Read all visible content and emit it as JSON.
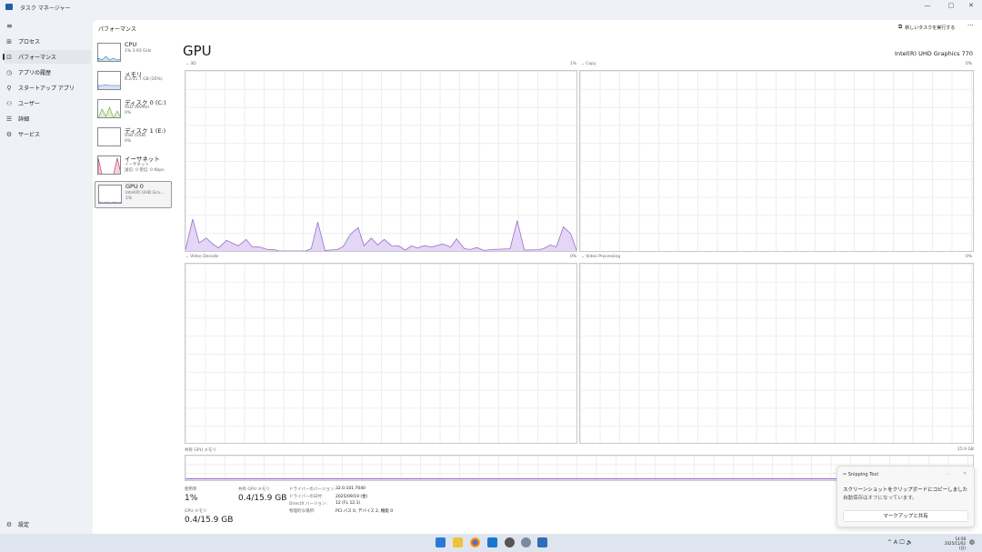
{
  "window": {
    "title": "タスク マネージャー",
    "min": "—",
    "max": "▢",
    "close": "✕"
  },
  "nav": {
    "menu_icon": "≡",
    "items": [
      {
        "label": "プロセス",
        "icon": "process-icon",
        "glyph": "⊞"
      },
      {
        "label": "パフォーマンス",
        "icon": "performance-icon",
        "glyph": "⊡",
        "active": true
      },
      {
        "label": "アプリの履歴",
        "icon": "history-icon",
        "glyph": "◷"
      },
      {
        "label": "スタートアップ アプリ",
        "icon": "startup-icon",
        "glyph": "⚲"
      },
      {
        "label": "ユーザー",
        "icon": "users-icon",
        "glyph": "⚇"
      },
      {
        "label": "詳細",
        "icon": "details-icon",
        "glyph": "☰"
      },
      {
        "label": "サービス",
        "icon": "services-icon",
        "glyph": "⚙"
      }
    ],
    "settings": "設定"
  },
  "header": {
    "title": "パフォーマンス",
    "run_task": "新しいタスクを実行する",
    "more": "···"
  },
  "devices": [
    {
      "name": "CPU",
      "line1": "1% 3.93 GHz",
      "line2": "",
      "color": "#1f7fc2"
    },
    {
      "name": "メモリ",
      "line1": "8.2/31.7 GB (26%)",
      "line2": "",
      "color": "#3a6fc4"
    },
    {
      "name": "ディスク 0 (C:)",
      "line1": "SSD (NVMe)",
      "line2": "0%",
      "color": "#6aa62b"
    },
    {
      "name": "ディスク 1 (E:)",
      "line1": "USB (USB)",
      "line2": "0%",
      "color": "#6aa62b"
    },
    {
      "name": "イーサネット",
      "line1": "イーサネット",
      "line2": "送信: 0 受信: 0 Kbps",
      "color": "#c2185b"
    },
    {
      "name": "GPU 0",
      "line1": "Intel(R) UHD Gra...",
      "line2": "1%",
      "color": "#8a4fc6",
      "selected": true
    }
  ],
  "gpu": {
    "title": "GPU",
    "adapter": "Intel(R) UHD Graphics 770",
    "engines": [
      {
        "label": "3D",
        "max": "1%"
      },
      {
        "label": "Copy",
        "max": "0%"
      },
      {
        "label": "Video Decode",
        "max": "0%"
      },
      {
        "label": "Video Processing",
        "max": "0%"
      }
    ],
    "shared_mem_label": "共有 GPU メモリ",
    "shared_mem_max": "15.9 GB",
    "stats": {
      "util_label": "使用率",
      "util": "1%",
      "shared_label": "共有 GPU メモリ",
      "shared": "0.4/15.9 GB",
      "gpumem_label": "GPU メモリ",
      "gpumem": "0.4/15.9 GB"
    },
    "driver": [
      {
        "k": "ドライバーのバージョン:",
        "v": "32.0.101.7040"
      },
      {
        "k": "ドライバーの日付:",
        "v": "2025/09/19 (金)"
      },
      {
        "k": "DirectX バージョン:",
        "v": "12 (FL 12.1)"
      },
      {
        "k": "物理的な場所:",
        "v": "PCI バス 0, デバイス 2, 機能 0"
      }
    ]
  },
  "chart_data": {
    "type": "area",
    "series_color": "#9a6fc8",
    "fill": "#e4d6f6",
    "ylim": [
      0,
      1
    ],
    "xlim": [
      0,
      60
    ],
    "x": [
      0,
      1.1,
      2.1,
      3.2,
      4.2,
      5.1,
      6.3,
      8.1,
      9.3,
      10.2,
      11.4,
      12.6,
      13.5,
      14.4,
      18.4,
      19.3,
      20.3,
      21.4,
      23.3,
      24.2,
      25.3,
      26.5,
      27.4,
      28.5,
      29.5,
      30.5,
      31.6,
      32.7,
      33.7,
      34.7,
      35.6,
      36.7,
      37.7,
      39.5,
      40.7,
      41.6,
      42.8,
      43.7,
      44.7,
      45.8,
      47,
      49.8,
      50.9,
      52,
      54,
      54.9,
      56,
      56.9,
      58,
      59.1,
      60
    ],
    "y": [
      0.008,
      0.177,
      0.045,
      0.072,
      0.039,
      0.017,
      0.059,
      0.029,
      0.064,
      0.025,
      0.022,
      0.008,
      0.008,
      0,
      0,
      0.012,
      0.16,
      0.003,
      0.008,
      0.025,
      0.093,
      0.13,
      0.029,
      0.072,
      0.034,
      0.064,
      0.03,
      0.029,
      0.005,
      0.029,
      0.017,
      0.03,
      0.022,
      0.039,
      0.022,
      0.067,
      0.013,
      0.008,
      0.019,
      0.003,
      0.008,
      0.012,
      0.168,
      0.005,
      0.007,
      0.012,
      0.034,
      0.022,
      0.135,
      0.096,
      0.005
    ]
  },
  "toast": {
    "app": "Snipping Tool",
    "line1": "スクリーンショットをクリップボードにコピーしました",
    "line2": "自動保存はオフになっています。",
    "button": "マークアップと共有"
  },
  "taskbar": {
    "time": "14:58",
    "date": "2025/11/02 (日)",
    "tray": "^ A 🖵 🔈"
  }
}
